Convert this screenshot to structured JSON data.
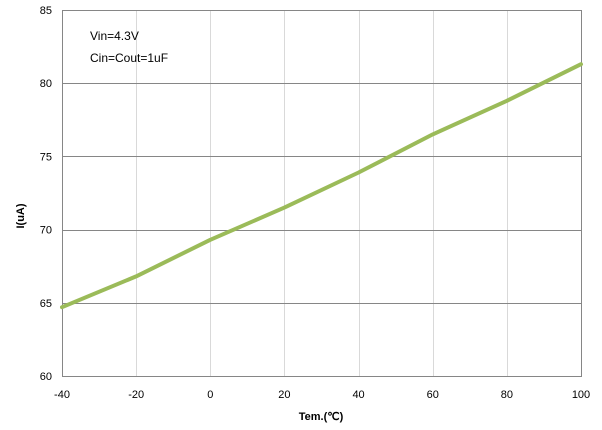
{
  "chart_data": {
    "type": "line",
    "xlabel": "Tem.(℃)",
    "ylabel": "I(uA)",
    "xlim": [
      -40,
      100
    ],
    "ylim": [
      60,
      85
    ],
    "xticks": [
      -40,
      -20,
      0,
      20,
      40,
      60,
      80,
      100
    ],
    "yticks": [
      60,
      65,
      70,
      75,
      80,
      85
    ],
    "grid": true,
    "annotations": [
      "Vin=4.3V",
      "Cin=Cout=1uF"
    ],
    "series": [
      {
        "color": "#9bbb59",
        "x": [
          -40,
          -20,
          0,
          20,
          40,
          60,
          80,
          100
        ],
        "values": [
          64.7,
          66.8,
          69.3,
          71.5,
          73.9,
          76.5,
          78.8,
          81.3
        ]
      }
    ]
  }
}
